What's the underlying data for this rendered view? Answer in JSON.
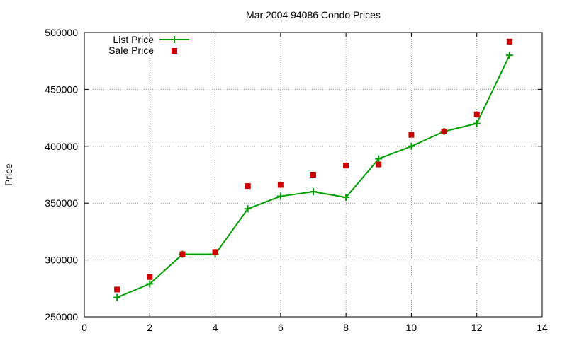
{
  "chart_data": {
    "type": "line",
    "title": "Mar 2004 94086 Condo Prices",
    "xlabel": "",
    "ylabel": "Price",
    "xlim": [
      0,
      14
    ],
    "ylim": [
      250000,
      500000
    ],
    "xticks": [
      0,
      2,
      4,
      6,
      8,
      10,
      12,
      14
    ],
    "yticks": [
      250000,
      300000,
      350000,
      400000,
      450000,
      500000
    ],
    "grid": true,
    "legend_position": "top-left",
    "x": [
      1,
      2,
      3,
      4,
      5,
      6,
      7,
      8,
      9,
      10,
      11,
      12,
      13
    ],
    "series": [
      {
        "name": "List Price",
        "style": "line+cross",
        "color": "#00a000",
        "values": [
          267000,
          279000,
          305000,
          305000,
          345000,
          356000,
          360000,
          355000,
          389000,
          400000,
          413000,
          420000,
          480000
        ]
      },
      {
        "name": "Sale Price",
        "style": "square",
        "color": "#cc0000",
        "values": [
          274000,
          285000,
          305000,
          307000,
          365000,
          366000,
          375000,
          383000,
          384000,
          410000,
          413000,
          428000,
          492000
        ]
      }
    ]
  }
}
